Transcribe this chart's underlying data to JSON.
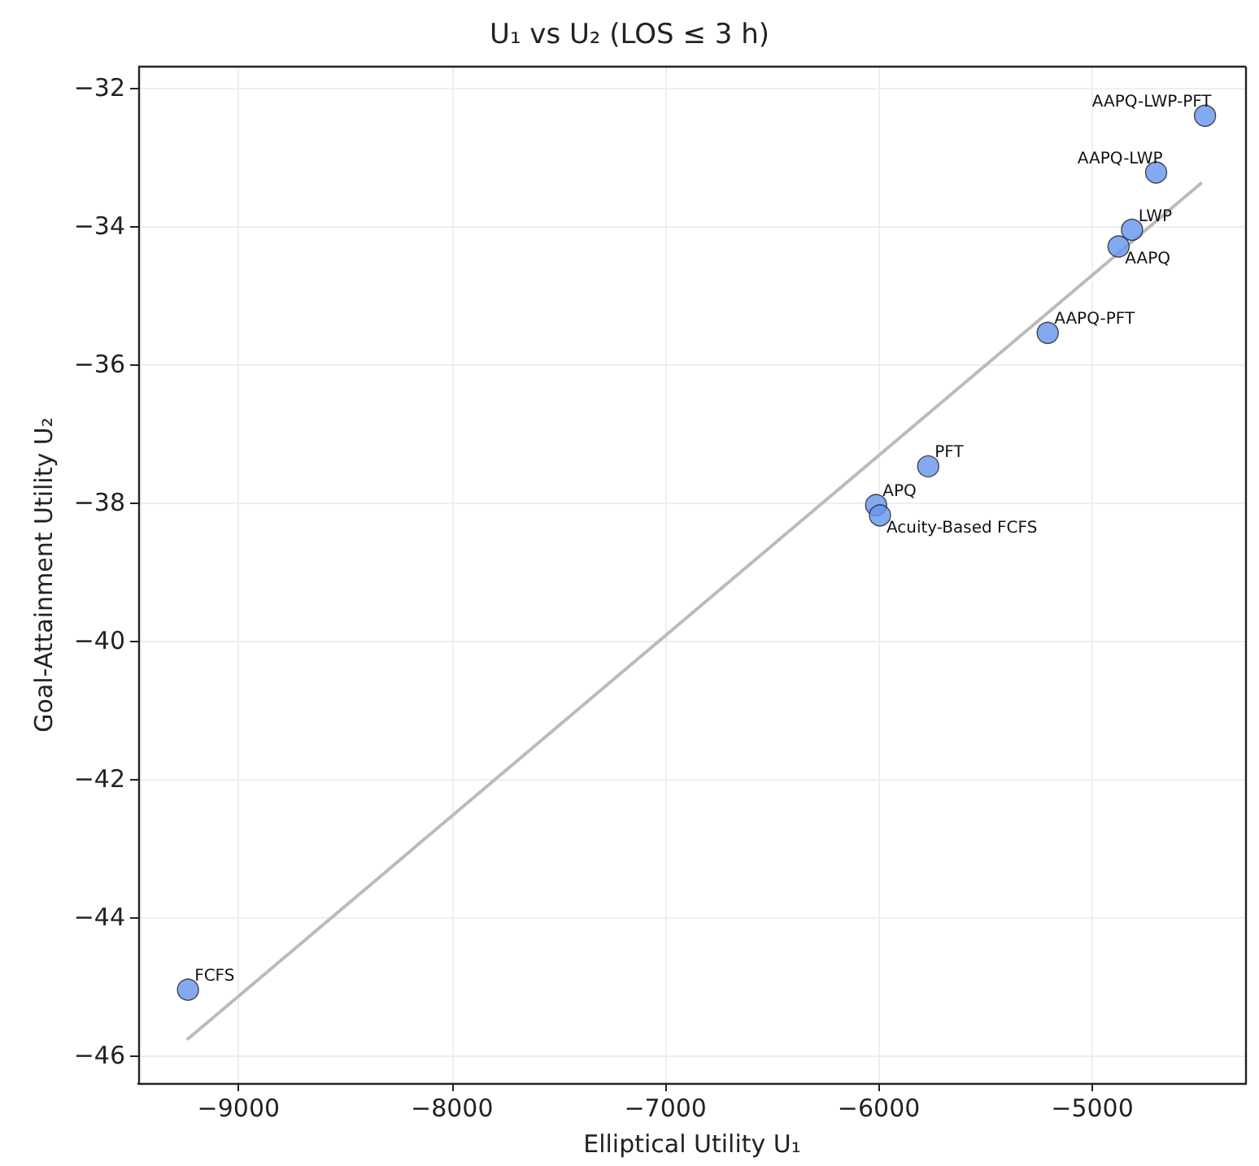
{
  "chart_data": {
    "type": "scatter",
    "title": "U₁ vs U₂ (LOS ≤ 3 h)",
    "xlabel": "Elliptical Utility U₁",
    "ylabel": "Goal-Attainment Utility U₂",
    "series": [
      {
        "type": "line",
        "color": "#bbbbbb",
        "x": [
          -9237,
          -4492
        ],
        "values": [
          -45.76,
          -33.39
        ],
        "marker": "none"
      },
      {
        "color": "#6495ed",
        "x": [
          -9237,
          -6013,
          -5995,
          -5769,
          -5209,
          -4877,
          -4814,
          -4701,
          -4472
        ],
        "values": [
          -45.05,
          -38.04,
          -38.19,
          -37.48,
          -35.55,
          -34.3,
          -34.06,
          -33.23,
          -32.41
        ],
        "marker": "circle"
      }
    ],
    "annotations": [
      {
        "text": "FCFS",
        "x": -9237,
        "y": -45.05
      },
      {
        "text": "APQ",
        "x": -6013,
        "y": -38.04
      },
      {
        "text": "Acuity-Based FCFS",
        "x": -5995,
        "y": -38.19
      },
      {
        "text": "PFT",
        "x": -5769,
        "y": -37.48
      },
      {
        "text": "AAPQ-PFT",
        "x": -5209,
        "y": -35.55
      },
      {
        "text": "AAPQ",
        "x": -4877,
        "y": -34.3
      },
      {
        "text": "LWP",
        "x": -4814,
        "y": -34.06
      },
      {
        "text": "AAPQ-LWP",
        "x": -4701,
        "y": -33.23
      },
      {
        "text": "AAPQ-LWP-PFT",
        "x": -4472,
        "y": -32.41
      }
    ],
    "xlim": [
      -9470,
      -4280
    ],
    "xticks": [
      -9000,
      -8000,
      -7000,
      -6000,
      -5000
    ],
    "ylim": [
      -46.4,
      -31.7
    ],
    "yticks": [
      -46,
      -44,
      -42,
      -40,
      -38,
      -36,
      -34,
      -32
    ],
    "grid": true
  }
}
